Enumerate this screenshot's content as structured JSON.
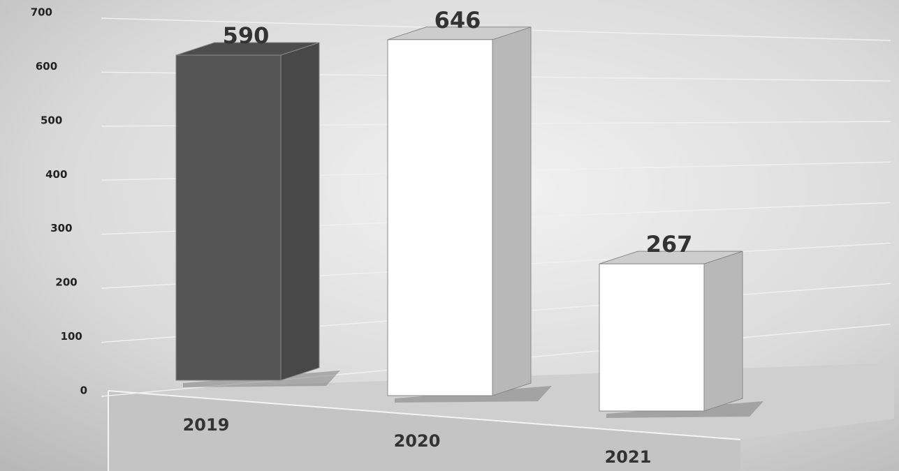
{
  "chart_data": {
    "type": "bar3d",
    "categories": [
      "2019",
      "2020",
      "2021"
    ],
    "values": [
      590,
      646,
      267
    ],
    "colors": [
      "#555555",
      "#ffffff",
      "#ffffff"
    ],
    "ylim": [
      0,
      700
    ],
    "yticks": [
      0,
      100,
      200,
      300,
      400,
      500,
      600,
      700
    ],
    "grid": true
  }
}
